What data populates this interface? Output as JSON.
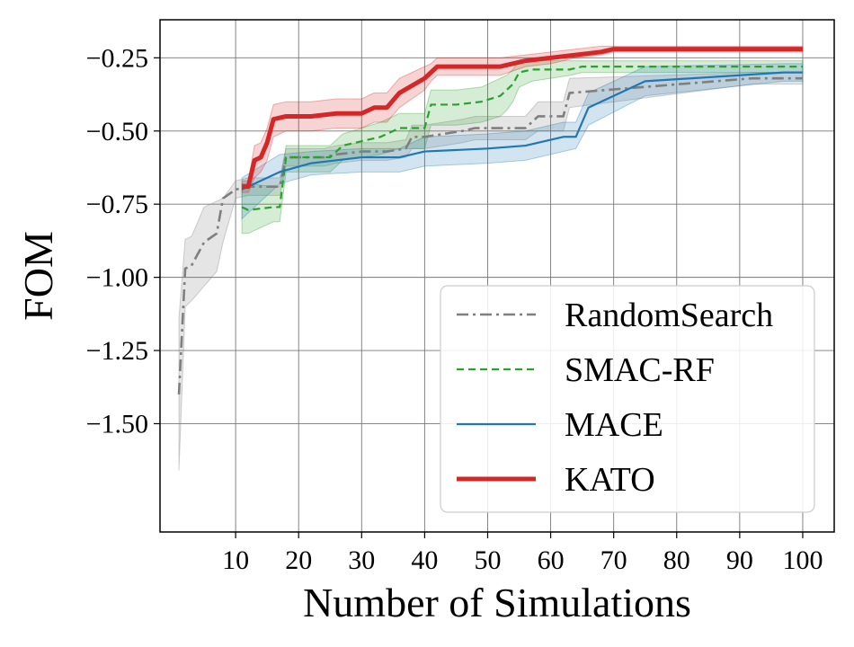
{
  "chart_data": {
    "type": "line",
    "title": "",
    "xlabel": "Number of Simulations",
    "ylabel": "FOM",
    "xlim": [
      -2,
      105
    ],
    "ylim": [
      -1.87,
      -0.12
    ],
    "xticks": [
      10,
      20,
      30,
      40,
      50,
      60,
      70,
      80,
      90,
      100
    ],
    "xtick_labels": [
      "10",
      "20",
      "30",
      "40",
      "50",
      "60",
      "70",
      "80",
      "90",
      "100"
    ],
    "yticks": [
      -0.25,
      -0.5,
      -0.75,
      -1.0,
      -1.25,
      -1.5
    ],
    "ytick_labels": [
      "−0.25",
      "−0.50",
      "−0.75",
      "−1.00",
      "−1.25",
      "−1.50"
    ],
    "grid": true,
    "legend_position": "lower-right",
    "series": [
      {
        "name": "RandomSearch",
        "color": "#7f7f7f",
        "dash": "dashdot",
        "x": [
          1,
          2,
          3,
          5,
          7,
          8,
          10,
          12,
          14,
          16,
          17,
          18,
          24,
          26,
          30,
          34,
          37,
          38,
          40,
          46,
          48,
          56,
          58,
          62,
          63,
          92,
          100
        ],
        "y": [
          -1.4,
          -0.97,
          -0.96,
          -0.88,
          -0.85,
          -0.73,
          -0.7,
          -0.69,
          -0.69,
          -0.69,
          -0.69,
          -0.59,
          -0.59,
          -0.58,
          -0.57,
          -0.57,
          -0.56,
          -0.52,
          -0.52,
          -0.5,
          -0.49,
          -0.49,
          -0.45,
          -0.45,
          -0.37,
          -0.32,
          -0.32
        ],
        "lower": [
          -1.66,
          -1.1,
          -1.08,
          -1.03,
          -0.98,
          -0.88,
          -0.73,
          -0.72,
          -0.72,
          -0.72,
          -0.72,
          -0.62,
          -0.62,
          -0.61,
          -0.6,
          -0.6,
          -0.59,
          -0.56,
          -0.56,
          -0.54,
          -0.53,
          -0.53,
          -0.5,
          -0.5,
          -0.42,
          -0.34,
          -0.34
        ],
        "upper": [
          -1.14,
          -0.87,
          -0.86,
          -0.76,
          -0.74,
          -0.73,
          -0.67,
          -0.66,
          -0.66,
          -0.66,
          -0.66,
          -0.56,
          -0.56,
          -0.55,
          -0.54,
          -0.54,
          -0.53,
          -0.48,
          -0.48,
          -0.46,
          -0.45,
          -0.45,
          -0.4,
          -0.4,
          -0.32,
          -0.3,
          -0.3
        ]
      },
      {
        "name": "SMAC-RF",
        "color": "#2ca02c",
        "dash": "dashed",
        "x": [
          11,
          12,
          16,
          17,
          18,
          25,
          27,
          33,
          36,
          38,
          40,
          41,
          45,
          49,
          52,
          53,
          54,
          55,
          57,
          63,
          65,
          68,
          69,
          100
        ],
        "y": [
          -0.76,
          -0.77,
          -0.76,
          -0.76,
          -0.59,
          -0.59,
          -0.55,
          -0.52,
          -0.49,
          -0.49,
          -0.49,
          -0.41,
          -0.41,
          -0.4,
          -0.38,
          -0.36,
          -0.34,
          -0.3,
          -0.29,
          -0.29,
          -0.28,
          -0.28,
          -0.28,
          -0.28
        ],
        "lower": [
          -0.85,
          -0.85,
          -0.81,
          -0.81,
          -0.64,
          -0.64,
          -0.6,
          -0.58,
          -0.56,
          -0.56,
          -0.56,
          -0.48,
          -0.48,
          -0.47,
          -0.45,
          -0.43,
          -0.4,
          -0.35,
          -0.33,
          -0.31,
          -0.3,
          -0.3,
          -0.3,
          -0.3
        ],
        "upper": [
          -0.68,
          -0.68,
          -0.69,
          -0.69,
          -0.55,
          -0.55,
          -0.51,
          -0.47,
          -0.44,
          -0.44,
          -0.44,
          -0.36,
          -0.36,
          -0.35,
          -0.32,
          -0.31,
          -0.29,
          -0.26,
          -0.26,
          -0.26,
          -0.26,
          -0.26,
          -0.26,
          -0.26
        ]
      },
      {
        "name": "MACE",
        "color": "#1f77b4",
        "dash": "solid",
        "x": [
          11,
          17,
          22,
          30,
          36,
          40,
          50,
          56,
          62,
          64,
          66,
          75,
          97,
          100
        ],
        "y": [
          -0.7,
          -0.64,
          -0.61,
          -0.59,
          -0.59,
          -0.57,
          -0.56,
          -0.55,
          -0.52,
          -0.52,
          -0.42,
          -0.33,
          -0.3,
          -0.3
        ],
        "lower": [
          -0.8,
          -0.68,
          -0.65,
          -0.64,
          -0.64,
          -0.62,
          -0.61,
          -0.6,
          -0.57,
          -0.56,
          -0.48,
          -0.38,
          -0.33,
          -0.33
        ],
        "upper": [
          -0.66,
          -0.58,
          -0.57,
          -0.56,
          -0.56,
          -0.52,
          -0.51,
          -0.5,
          -0.47,
          -0.47,
          -0.37,
          -0.28,
          -0.27,
          -0.27
        ]
      },
      {
        "name": "KATO",
        "color": "#d62728",
        "dash": "solid",
        "x": [
          11,
          12,
          13,
          14,
          15,
          16,
          18,
          22,
          26,
          30,
          32,
          34,
          36,
          40,
          41,
          42,
          44,
          52,
          56,
          60,
          64,
          68,
          70,
          76,
          82,
          84,
          100
        ],
        "y": [
          -0.69,
          -0.69,
          -0.6,
          -0.59,
          -0.54,
          -0.46,
          -0.45,
          -0.45,
          -0.44,
          -0.44,
          -0.42,
          -0.42,
          -0.37,
          -0.32,
          -0.3,
          -0.28,
          -0.28,
          -0.28,
          -0.26,
          -0.25,
          -0.24,
          -0.23,
          -0.22,
          -0.22,
          -0.22,
          -0.22,
          -0.22
        ],
        "lower": [
          -0.71,
          -0.71,
          -0.66,
          -0.64,
          -0.6,
          -0.52,
          -0.5,
          -0.5,
          -0.49,
          -0.49,
          -0.47,
          -0.47,
          -0.42,
          -0.36,
          -0.33,
          -0.31,
          -0.31,
          -0.31,
          -0.28,
          -0.27,
          -0.25,
          -0.24,
          -0.23,
          -0.23,
          -0.23,
          -0.23,
          -0.23
        ],
        "upper": [
          -0.67,
          -0.67,
          -0.55,
          -0.54,
          -0.49,
          -0.41,
          -0.4,
          -0.4,
          -0.39,
          -0.39,
          -0.37,
          -0.37,
          -0.32,
          -0.28,
          -0.27,
          -0.25,
          -0.25,
          -0.25,
          -0.24,
          -0.23,
          -0.22,
          -0.21,
          -0.21,
          -0.21,
          -0.21,
          -0.21,
          -0.21
        ]
      }
    ]
  }
}
